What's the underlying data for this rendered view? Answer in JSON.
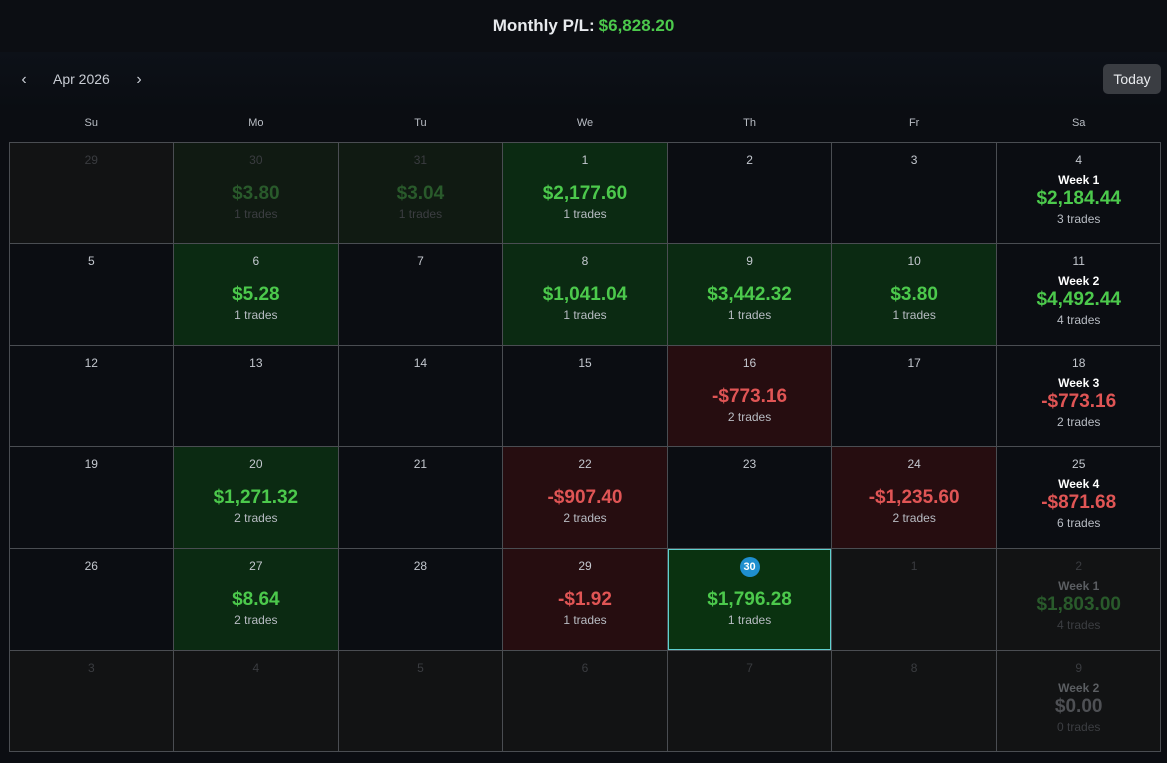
{
  "header": {
    "label": "Monthly P/L:",
    "value": "$6,828.20"
  },
  "nav": {
    "prev_icon": "‹",
    "next_icon": "›",
    "month": "Apr 2026",
    "today_label": "Today"
  },
  "weekdays": [
    "Su",
    "Mo",
    "Tu",
    "We",
    "Th",
    "Fr",
    "Sa"
  ],
  "weeks": [
    [
      {
        "day": "29",
        "out": true
      },
      {
        "day": "30",
        "out": true,
        "amount": "$3.80",
        "trades": "1 trades",
        "tone": "green",
        "sign": "pos"
      },
      {
        "day": "31",
        "out": true,
        "amount": "$3.04",
        "trades": "1 trades",
        "tone": "green",
        "sign": "pos"
      },
      {
        "day": "1",
        "amount": "$2,177.60",
        "trades": "1 trades",
        "tone": "green",
        "sign": "pos"
      },
      {
        "day": "2"
      },
      {
        "day": "3"
      },
      {
        "day": "4",
        "week": "Week 1",
        "amount": "$2,184.44",
        "trades": "3 trades",
        "sign": "pos",
        "sat": true
      }
    ],
    [
      {
        "day": "5"
      },
      {
        "day": "6",
        "amount": "$5.28",
        "trades": "1 trades",
        "tone": "green",
        "sign": "pos"
      },
      {
        "day": "7"
      },
      {
        "day": "8",
        "amount": "$1,041.04",
        "trades": "1 trades",
        "tone": "green",
        "sign": "pos"
      },
      {
        "day": "9",
        "amount": "$3,442.32",
        "trades": "1 trades",
        "tone": "green",
        "sign": "pos"
      },
      {
        "day": "10",
        "amount": "$3.80",
        "trades": "1 trades",
        "tone": "green",
        "sign": "pos"
      },
      {
        "day": "11",
        "week": "Week 2",
        "amount": "$4,492.44",
        "trades": "4 trades",
        "sign": "pos",
        "sat": true
      }
    ],
    [
      {
        "day": "12"
      },
      {
        "day": "13"
      },
      {
        "day": "14"
      },
      {
        "day": "15"
      },
      {
        "day": "16",
        "amount": "-$773.16",
        "trades": "2 trades",
        "tone": "red",
        "sign": "neg"
      },
      {
        "day": "17"
      },
      {
        "day": "18",
        "week": "Week 3",
        "amount": "-$773.16",
        "trades": "2 trades",
        "sign": "neg",
        "sat": true
      }
    ],
    [
      {
        "day": "19"
      },
      {
        "day": "20",
        "amount": "$1,271.32",
        "trades": "2 trades",
        "tone": "green",
        "sign": "pos"
      },
      {
        "day": "21"
      },
      {
        "day": "22",
        "amount": "-$907.40",
        "trades": "2 trades",
        "tone": "red",
        "sign": "neg"
      },
      {
        "day": "23"
      },
      {
        "day": "24",
        "amount": "-$1,235.60",
        "trades": "2 trades",
        "tone": "red",
        "sign": "neg"
      },
      {
        "day": "25",
        "week": "Week 4",
        "amount": "-$871.68",
        "trades": "6 trades",
        "sign": "neg",
        "sat": true
      }
    ],
    [
      {
        "day": "26"
      },
      {
        "day": "27",
        "amount": "$8.64",
        "trades": "2 trades",
        "tone": "green",
        "sign": "pos"
      },
      {
        "day": "28"
      },
      {
        "day": "29",
        "amount": "-$1.92",
        "trades": "1 trades",
        "tone": "red",
        "sign": "neg"
      },
      {
        "day": "30",
        "amount": "$1,796.28",
        "trades": "1 trades",
        "tone": "green",
        "sign": "pos",
        "today": true
      },
      {
        "day": "1",
        "out": true
      },
      {
        "day": "2",
        "out": true,
        "week": "Week 1",
        "amount": "$1,803.00",
        "trades": "4 trades",
        "sign": "pos",
        "sat": true
      }
    ],
    [
      {
        "day": "3",
        "out": true
      },
      {
        "day": "4",
        "out": true
      },
      {
        "day": "5",
        "out": true
      },
      {
        "day": "6",
        "out": true
      },
      {
        "day": "7",
        "out": true
      },
      {
        "day": "8",
        "out": true
      },
      {
        "day": "9",
        "out": true,
        "week": "Week 2",
        "amount": "$0.00",
        "trades": "0 trades",
        "sign": "zero",
        "sat": true
      }
    ]
  ]
}
